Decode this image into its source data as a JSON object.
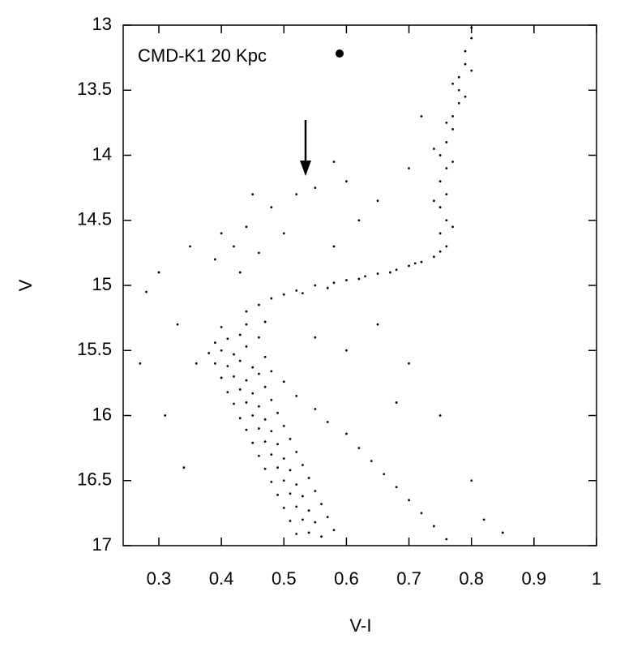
{
  "chart_data": {
    "type": "scatter",
    "annotation": "CMD-K1 20 Kpc",
    "x_label": "V-I",
    "y_label": "V",
    "color": "#000000",
    "xlim": [
      0.243,
      1.0
    ],
    "ylim": [
      17,
      13
    ],
    "xticks": [
      0.3,
      0.4,
      0.5,
      0.6,
      0.7,
      0.8,
      0.9,
      1
    ],
    "yticks": [
      13,
      13.5,
      14,
      14.5,
      15,
      15.5,
      16,
      16.5,
      17
    ],
    "x": [
      0.44,
      0.4,
      0.47,
      0.41,
      0.43,
      0.39,
      0.46,
      0.4,
      0.42,
      0.44,
      0.38,
      0.47,
      0.41,
      0.43,
      0.45,
      0.39,
      0.48,
      0.42,
      0.44,
      0.46,
      0.4,
      0.5,
      0.43,
      0.45,
      0.47,
      0.41,
      0.52,
      0.44,
      0.46,
      0.48,
      0.42,
      0.55,
      0.45,
      0.47,
      0.49,
      0.43,
      0.57,
      0.46,
      0.48,
      0.5,
      0.44,
      0.6,
      0.47,
      0.49,
      0.51,
      0.45,
      0.62,
      0.48,
      0.5,
      0.52,
      0.46,
      0.64,
      0.49,
      0.51,
      0.53,
      0.47,
      0.66,
      0.5,
      0.52,
      0.54,
      0.48,
      0.68,
      0.51,
      0.53,
      0.55,
      0.49,
      0.7,
      0.52,
      0.54,
      0.56,
      0.5,
      0.72,
      0.53,
      0.55,
      0.57,
      0.51,
      0.74,
      0.54,
      0.56,
      0.58,
      0.52,
      0.76,
      0.44,
      0.46,
      0.48,
      0.5,
      0.52,
      0.55,
      0.58,
      0.6,
      0.63,
      0.65,
      0.68,
      0.7,
      0.72,
      0.74,
      0.75,
      0.53,
      0.57,
      0.62,
      0.67,
      0.71,
      0.76,
      0.75,
      0.76,
      0.75,
      0.76,
      0.75,
      0.76,
      0.75,
      0.76,
      0.77,
      0.77,
      0.78,
      0.78,
      0.78,
      0.79,
      0.79,
      0.8,
      0.8,
      0.77,
      0.74,
      0.77,
      0.74,
      0.76,
      0.79,
      0.77,
      0.8,
      0.4,
      0.42,
      0.44,
      0.46,
      0.39,
      0.43,
      0.48,
      0.52,
      0.55,
      0.6,
      0.65,
      0.7,
      0.5,
      0.58,
      0.62,
      0.35,
      0.3,
      0.28,
      0.33,
      0.36,
      0.31,
      0.34,
      0.65,
      0.7,
      0.6,
      0.75,
      0.8,
      0.82,
      0.55,
      0.68,
      0.72,
      0.58,
      0.45,
      0.85,
      0.27
    ],
    "values": [
      15.3,
      15.32,
      15.28,
      15.41,
      15.38,
      15.44,
      15.4,
      15.5,
      15.53,
      15.47,
      15.52,
      15.55,
      15.62,
      15.58,
      15.63,
      15.6,
      15.66,
      15.7,
      15.73,
      15.68,
      15.71,
      15.74,
      15.8,
      15.83,
      15.78,
      15.82,
      15.85,
      15.9,
      15.93,
      15.88,
      15.91,
      15.95,
      16,
      16.03,
      15.98,
      16.02,
      16.05,
      16.1,
      16.12,
      16.08,
      16.11,
      16.14,
      16.2,
      16.22,
      16.18,
      16.21,
      16.25,
      16.3,
      16.33,
      16.28,
      16.31,
      16.35,
      16.4,
      16.42,
      16.38,
      16.41,
      16.45,
      16.5,
      16.53,
      16.48,
      16.51,
      16.55,
      16.6,
      16.62,
      16.58,
      16.61,
      16.65,
      16.7,
      16.73,
      16.68,
      16.71,
      16.75,
      16.8,
      16.82,
      16.78,
      16.81,
      16.85,
      16.9,
      16.93,
      16.88,
      16.91,
      16.95,
      15.2,
      15.15,
      15.1,
      15.07,
      15.04,
      15,
      14.98,
      14.96,
      14.93,
      14.91,
      14.88,
      14.85,
      14.82,
      14.78,
      14.74,
      15.06,
      15.02,
      14.95,
      14.9,
      14.83,
      14.7,
      14.6,
      14.5,
      14.4,
      14.3,
      14.2,
      14.1,
      14,
      13.9,
      13.8,
      13.7,
      13.6,
      13.5,
      13.4,
      13.3,
      13.2,
      13.1,
      13.02,
      14.55,
      14.35,
      14.05,
      13.95,
      13.75,
      13.55,
      13.45,
      13.35,
      14.6,
      14.7,
      14.55,
      14.75,
      14.8,
      14.9,
      14.4,
      14.3,
      14.25,
      14.2,
      14.35,
      14.1,
      14.6,
      14.7,
      14.5,
      14.7,
      14.9,
      15.05,
      15.3,
      15.6,
      16,
      16.4,
      15.3,
      15.6,
      15.5,
      16,
      16.5,
      16.8,
      15.4,
      15.9,
      13.7,
      14.05,
      14.3,
      16.9,
      15.6
    ]
  }
}
